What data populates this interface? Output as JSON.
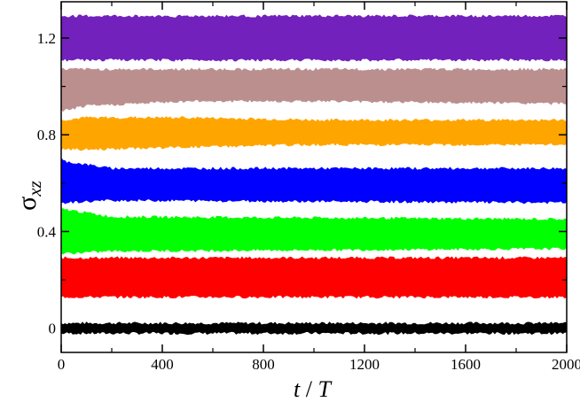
{
  "chart_data": {
    "type": "area",
    "title": "",
    "xlabel": {
      "var": "t",
      "sep": " / ",
      "unit": "T"
    },
    "ylabel": {
      "symbol": "σ",
      "subscript": "xz"
    },
    "xlim": [
      0,
      2000
    ],
    "ylim": [
      -0.1,
      1.35
    ],
    "xticks": [
      0,
      400,
      800,
      1200,
      1600,
      2000
    ],
    "yticks": [
      0,
      0.4,
      0.8,
      1.2
    ],
    "ytick_labels": [
      "0",
      "0.4",
      "0.8",
      "1.2"
    ],
    "grid": false,
    "legend": "none",
    "series": [
      {
        "color": "#000000",
        "x": [
          0,
          2000
        ],
        "low": [
          -0.02,
          -0.02
        ],
        "high": [
          0.02,
          0.02
        ]
      },
      {
        "color": "#ff0000",
        "x": [
          0,
          2000
        ],
        "low": [
          0.13,
          0.13
        ],
        "high": [
          0.29,
          0.29
        ]
      },
      {
        "color": "#00ff00",
        "x": [
          0,
          20,
          200,
          2000
        ],
        "low": [
          0.31,
          0.31,
          0.32,
          0.33
        ],
        "high": [
          0.49,
          0.49,
          0.46,
          0.45
        ]
      },
      {
        "color": "#0000ff",
        "x": [
          0,
          10,
          200,
          2000
        ],
        "low": [
          0.52,
          0.52,
          0.53,
          0.52
        ],
        "high": [
          0.7,
          0.69,
          0.66,
          0.66
        ]
      },
      {
        "color": "#ffa500",
        "x": [
          0,
          100,
          500,
          1000,
          2000
        ],
        "low": [
          0.74,
          0.74,
          0.75,
          0.76,
          0.76
        ],
        "high": [
          0.86,
          0.87,
          0.87,
          0.86,
          0.86
        ]
      },
      {
        "color": "#bc8f8f",
        "x": [
          0,
          100,
          500,
          1000,
          2000
        ],
        "low": [
          0.9,
          0.92,
          0.94,
          0.94,
          0.93
        ],
        "high": [
          1.07,
          1.07,
          1.07,
          1.07,
          1.07
        ]
      },
      {
        "color": "#7221bc",
        "x": [
          0,
          2000
        ],
        "low": [
          1.11,
          1.11
        ],
        "high": [
          1.29,
          1.29
        ]
      }
    ]
  }
}
